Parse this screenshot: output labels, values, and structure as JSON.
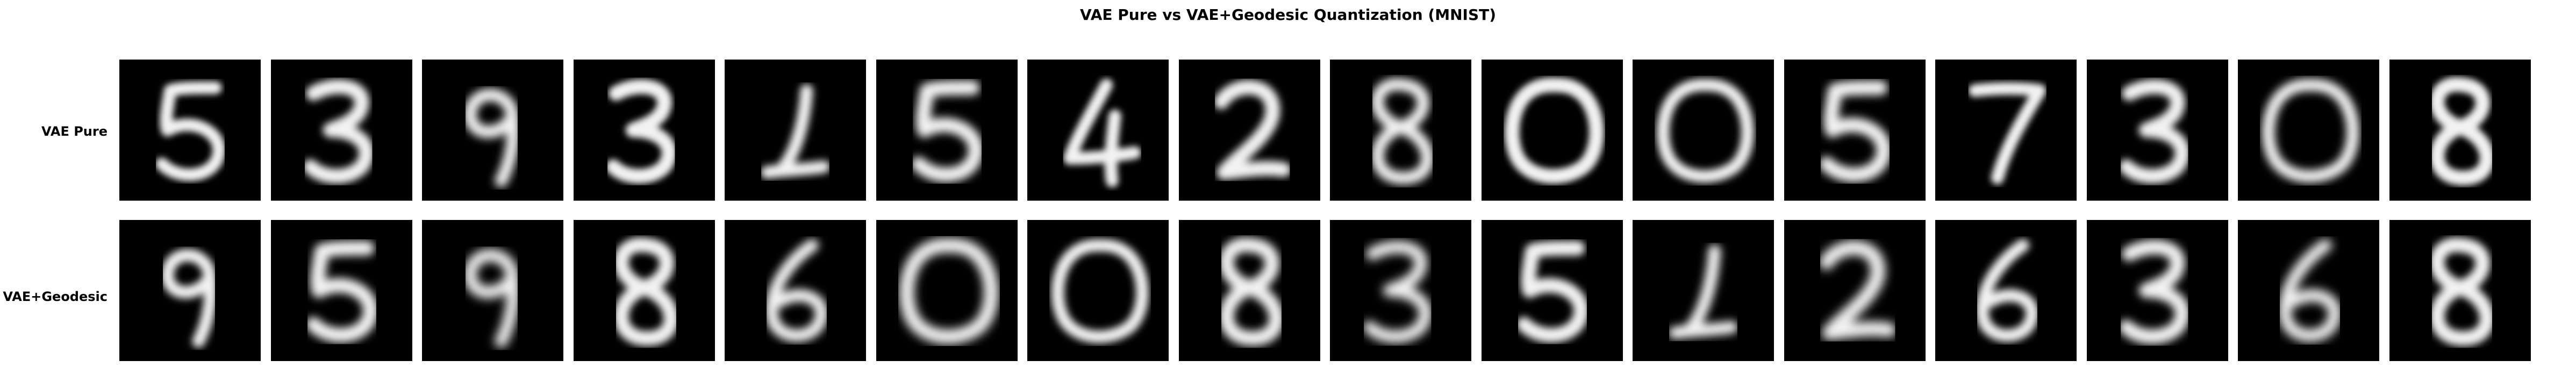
{
  "title": "VAE Pure vs VAE+Geodesic Quantization (MNIST)",
  "row_labels": [
    "VAE Pure",
    "VAE+Geodesic"
  ],
  "rows": [
    {
      "name": "VAE Pure",
      "digits": [
        "5",
        "3",
        "9",
        "3",
        "1",
        "5",
        "4",
        "2",
        "8",
        "0",
        "0",
        "5",
        "7",
        "3",
        "0",
        "8"
      ]
    },
    {
      "name": "VAE+Geodesic",
      "digits": [
        "9",
        "5",
        "9",
        "8",
        "6",
        "0",
        "0",
        "8",
        "3",
        "5",
        "1",
        "2",
        "6",
        "3",
        "6",
        "8"
      ]
    }
  ]
}
